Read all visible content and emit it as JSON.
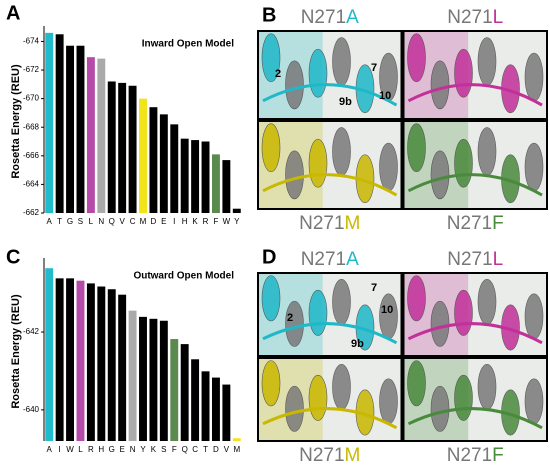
{
  "panel_labels": [
    "A",
    "B",
    "C",
    "D"
  ],
  "chart_data": [
    {
      "type": "bar",
      "title": "Inward Open Model",
      "y_label": "Rosetta Energy (REU)",
      "categories": [
        "A",
        "T",
        "G",
        "S",
        "L",
        "N",
        "Q",
        "V",
        "C",
        "M",
        "D",
        "E",
        "I",
        "H",
        "K",
        "R",
        "F",
        "W",
        "Y"
      ],
      "values": [
        -674.6,
        -674.5,
        -673.7,
        -673.7,
        -672.9,
        -672.8,
        -671.2,
        -671.1,
        -670.9,
        -670.0,
        -669.4,
        -668.9,
        -668.2,
        -667.2,
        -667.1,
        -667.0,
        -666.1,
        -665.7,
        -662.3
      ],
      "colors": [
        "#21bccb",
        "#000000",
        "#000000",
        "#000000",
        "#b54aa8",
        "#aaaaaa",
        "#000000",
        "#000000",
        "#000000",
        "#f2e31b",
        "#000000",
        "#000000",
        "#000000",
        "#000000",
        "#000000",
        "#000000",
        "#5a8a4e",
        "#000000",
        "#000000"
      ],
      "ylim": [
        -662,
        -674.8
      ],
      "yticks": [
        -674,
        -672,
        -670,
        -668,
        -666,
        -664,
        -662
      ]
    },
    {
      "type": "bar",
      "title": "Outward Open Model",
      "y_label": "Rosetta Energy (REU)",
      "categories": [
        "A",
        "I",
        "W",
        "L",
        "R",
        "H",
        "G",
        "E",
        "N",
        "Y",
        "K",
        "S",
        "F",
        "Q",
        "C",
        "T",
        "D",
        "V",
        "M"
      ],
      "values": [
        -643.64,
        -643.38,
        -643.38,
        -643.32,
        -643.25,
        -643.17,
        -643.1,
        -642.96,
        -642.55,
        -642.39,
        -642.34,
        -642.29,
        -641.82,
        -641.69,
        -641.3,
        -640.99,
        -640.83,
        -640.65,
        -639.27
      ],
      "colors": [
        "#21bccb",
        "#000000",
        "#000000",
        "#b54aa8",
        "#000000",
        "#000000",
        "#000000",
        "#000000",
        "#aaaaaa",
        "#000000",
        "#000000",
        "#000000",
        "#5a8a4e",
        "#000000",
        "#000000",
        "#000000",
        "#000000",
        "#000000",
        "#f2e31b"
      ],
      "ylim": [
        -639.2,
        -643.8
      ],
      "yticks": [
        -642,
        -640
      ]
    }
  ],
  "structures": [
    {
      "panels": [
        {
          "prefix": "N271",
          "mutation": "A",
          "color": "#1fb8c8",
          "annotations": [
            "2",
            "7",
            "9b",
            "10"
          ]
        },
        {
          "prefix": "N271",
          "mutation": "L",
          "color": "#c2309a"
        },
        {
          "prefix": "N271",
          "mutation": "M",
          "color": "#c9b800"
        },
        {
          "prefix": "N271",
          "mutation": "F",
          "color": "#4a8a3c"
        }
      ]
    },
    {
      "panels": [
        {
          "prefix": "N271",
          "mutation": "A",
          "color": "#1fb8c8",
          "annotations": [
            "7",
            "10",
            "2",
            "9b"
          ]
        },
        {
          "prefix": "N271",
          "mutation": "L",
          "color": "#c2309a"
        },
        {
          "prefix": "N271",
          "mutation": "M",
          "color": "#c9b800"
        },
        {
          "prefix": "N271",
          "mutation": "F",
          "color": "#4a8a3c"
        }
      ]
    }
  ]
}
